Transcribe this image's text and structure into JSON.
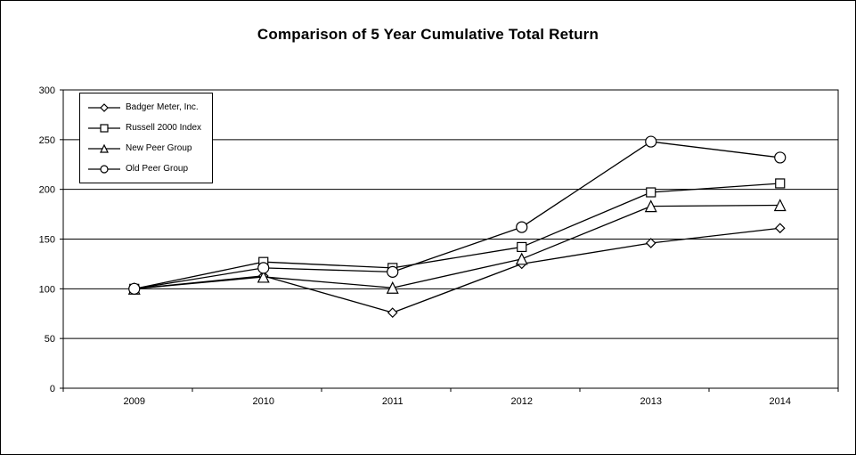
{
  "title": "Comparison of 5 Year Cumulative Total Return",
  "chart_data": {
    "type": "line",
    "title": "Comparison of 5 Year Cumulative Total Return",
    "xlabel": "",
    "ylabel": "",
    "categories": [
      "2009",
      "2010",
      "2011",
      "2012",
      "2013",
      "2014"
    ],
    "series": [
      {
        "name": "Badger Meter, Inc.",
        "marker": "diamond",
        "values": [
          100,
          113,
          76,
          125,
          146,
          161
        ]
      },
      {
        "name": "Russell 2000 Index",
        "marker": "square",
        "values": [
          100,
          127,
          121,
          142,
          197,
          206
        ]
      },
      {
        "name": "New Peer Group",
        "marker": "triangle",
        "values": [
          100,
          112,
          101,
          130,
          183,
          184
        ]
      },
      {
        "name": "Old Peer Group",
        "marker": "circle",
        "values": [
          100,
          121,
          117,
          162,
          248,
          232
        ]
      }
    ],
    "ylim": [
      0,
      300
    ],
    "yticks": [
      0,
      50,
      100,
      150,
      200,
      250,
      300
    ],
    "grid": true,
    "legend_position": "top-left",
    "line_color": "#000000",
    "marker_fill": "#ffffff",
    "background_color": "#ffffff"
  }
}
